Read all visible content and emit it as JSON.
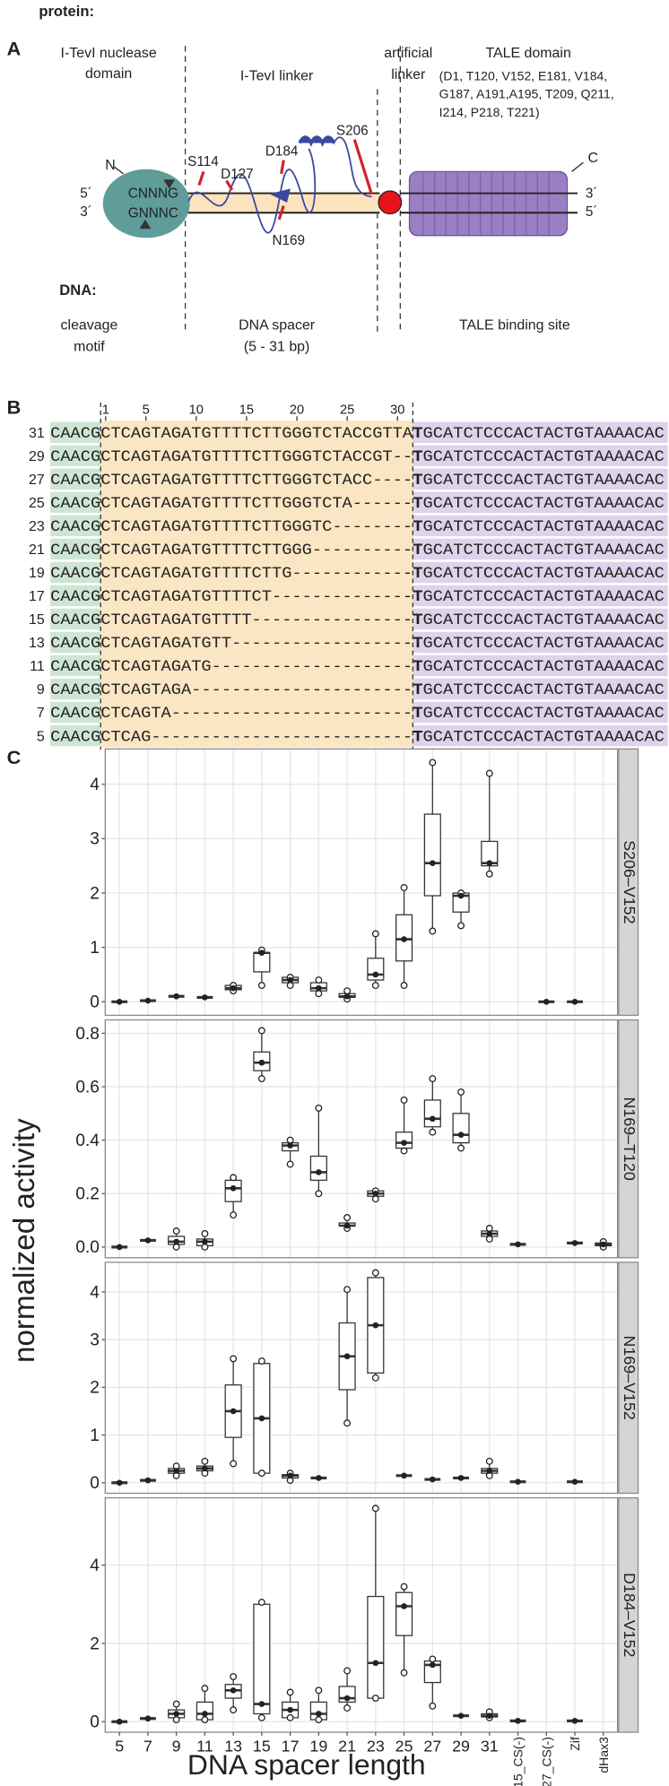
{
  "panel_a": {
    "label": "A",
    "protein": "protein:",
    "nuclease_domain": [
      "I-TevI nuclease",
      "domain"
    ],
    "linker": "I-TevI linker",
    "artificial_linker": [
      "artificial",
      "linker"
    ],
    "tale_domain": "TALE domain",
    "tale_residues": [
      "(D1, T120, V152, E181, V184,",
      "G187, A191,A195, T209, Q211,",
      "I214, P218, T221)"
    ],
    "n_term": "N",
    "c_term": "C",
    "left_top_end": "5´",
    "left_bottom_end": "3´",
    "right_top_end": "3´",
    "right_bottom_end": "5´",
    "top_motif": "CNNNG",
    "bottom_motif": "GNNNC",
    "sites": [
      "S114",
      "D127",
      "D184",
      "S206",
      "N169"
    ],
    "dna": "DNA:",
    "cleavage_motif": [
      "cleavage",
      "motif"
    ],
    "dna_spacer": [
      "DNA spacer",
      "(5 - 31 bp)"
    ],
    "tale_binding_site": "TALE binding site"
  },
  "panel_b": {
    "label": "B",
    "ruler": [
      1,
      5,
      10,
      15,
      20,
      25,
      30
    ],
    "rows": [
      {
        "length": "31",
        "motif": "CAACG",
        "spacer": "CTCAGTAGATGTTTTCTTGGGTCTACCGTTA",
        "junction": "T",
        "site": "GCATCTCCCACTACTGTAAAACAC"
      },
      {
        "length": "29",
        "motif": "CAACG",
        "spacer": "CTCAGTAGATGTTTTCTTGGGTCTACCGT--",
        "junction": "T",
        "site": "GCATCTCCCACTACTGTAAAACAC"
      },
      {
        "length": "27",
        "motif": "CAACG",
        "spacer": "CTCAGTAGATGTTTTCTTGGGTCTACC----",
        "junction": "T",
        "site": "GCATCTCCCACTACTGTAAAACAC"
      },
      {
        "length": "25",
        "motif": "CAACG",
        "spacer": "CTCAGTAGATGTTTTCTTGGGTCTA------",
        "junction": "T",
        "site": "GCATCTCCCACTACTGTAAAACAC"
      },
      {
        "length": "23",
        "motif": "CAACG",
        "spacer": "CTCAGTAGATGTTTTCTTGGGTC--------",
        "junction": "T",
        "site": "GCATCTCCCACTACTGTAAAACAC"
      },
      {
        "length": "21",
        "motif": "CAACG",
        "spacer": "CTCAGTAGATGTTTTCTTGGG----------",
        "junction": "T",
        "site": "GCATCTCCCACTACTGTAAAACAC"
      },
      {
        "length": "19",
        "motif": "CAACG",
        "spacer": "CTCAGTAGATGTTTTCTTG------------",
        "junction": "T",
        "site": "GCATCTCCCACTACTGTAAAACAC"
      },
      {
        "length": "17",
        "motif": "CAACG",
        "spacer": "CTCAGTAGATGTTTTCT--------------",
        "junction": "T",
        "site": "GCATCTCCCACTACTGTAAAACAC"
      },
      {
        "length": "15",
        "motif": "CAACG",
        "spacer": "CTCAGTAGATGTTTT----------------",
        "junction": "T",
        "site": "GCATCTCCCACTACTGTAAAACAC"
      },
      {
        "length": "13",
        "motif": "CAACG",
        "spacer": "CTCAGTAGATGTT------------------",
        "junction": "T",
        "site": "GCATCTCCCACTACTGTAAAACAC"
      },
      {
        "length": "11",
        "motif": "CAACG",
        "spacer": "CTCAGTAGATG--------------------",
        "junction": "T",
        "site": "GCATCTCCCACTACTGTAAAACAC"
      },
      {
        "length": "9",
        "motif": "CAACG",
        "spacer": "CTCAGTAGA----------------------",
        "junction": "T",
        "site": "GCATCTCCCACTACTGTAAAACAC"
      },
      {
        "length": "7",
        "motif": "CAACG",
        "spacer": "CTCAGTA------------------------",
        "junction": "T",
        "site": "GCATCTCCCACTACTGTAAAACAC"
      },
      {
        "length": "5",
        "motif": "CAACG",
        "spacer": "CTCAG--------------------------",
        "junction": "T",
        "site": "GCATCTCCCACTACTGTAAAACAC"
      }
    ]
  },
  "panel_c_label": "C",
  "chart_data": [
    {
      "type": "box",
      "title": "S206–V152",
      "ylabel": "normalized activity",
      "ylim": [
        -0.25,
        4.65
      ],
      "yticks": [
        0,
        1,
        2,
        3,
        4
      ],
      "grid": true,
      "values": [
        0,
        0.02,
        0.1,
        0.08,
        [
          0.2,
          0.22,
          0.25,
          0.3,
          0.3
        ],
        [
          0.3,
          0.55,
          0.9,
          0.9,
          0.95
        ],
        [
          0.3,
          0.35,
          0.4,
          0.45,
          0.45
        ],
        [
          0.15,
          0.2,
          0.25,
          0.35,
          0.4
        ],
        [
          0.05,
          0.08,
          0.1,
          0.15,
          0.2
        ],
        [
          0.3,
          0.4,
          0.5,
          0.8,
          1.25
        ],
        [
          0.3,
          0.75,
          1.15,
          1.6,
          2.1
        ],
        [
          1.3,
          1.95,
          2.55,
          3.45,
          4.4
        ],
        [
          1.4,
          1.65,
          1.95,
          2.0,
          2.0
        ],
        [
          2.35,
          2.5,
          2.55,
          2.95,
          4.2
        ],
        null,
        0,
        0,
        null
      ]
    },
    {
      "type": "box",
      "title": "N169–T120",
      "ylim": [
        -0.04,
        0.85
      ],
      "yticks": [
        {
          "value": 0,
          "label": "0.0"
        },
        0.2,
        0.4,
        0.6,
        0.8
      ],
      "grid": true,
      "values": [
        0,
        0.025,
        [
          0,
          0.01,
          0.02,
          0.04,
          0.06
        ],
        [
          0,
          0.005,
          0.02,
          0.03,
          0.05
        ],
        [
          0.12,
          0.17,
          0.22,
          0.25,
          0.26
        ],
        [
          0.63,
          0.66,
          0.69,
          0.73,
          0.81
        ],
        [
          0.31,
          0.36,
          0.38,
          0.39,
          0.4
        ],
        [
          0.2,
          0.25,
          0.28,
          0.34,
          0.52
        ],
        [
          0.07,
          0.08,
          0.08,
          0.09,
          0.11
        ],
        [
          0.18,
          0.19,
          0.2,
          0.21,
          0.21
        ],
        [
          0.36,
          0.37,
          0.39,
          0.43,
          0.55
        ],
        [
          0.43,
          0.45,
          0.48,
          0.55,
          0.63
        ],
        [
          0.37,
          0.39,
          0.42,
          0.5,
          0.58
        ],
        [
          0.03,
          0.04,
          0.05,
          0.06,
          0.07
        ],
        0.01,
        null,
        0.015,
        [
          0,
          0.005,
          0.01,
          0.015,
          0.02
        ]
      ]
    },
    {
      "type": "box",
      "title": "N169–V152",
      "ylim": [
        -0.22,
        4.62
      ],
      "yticks": [
        0,
        1,
        2,
        3,
        4
      ],
      "grid": true,
      "values": [
        0,
        0.05,
        [
          0.15,
          0.2,
          0.25,
          0.3,
          0.35
        ],
        [
          0.2,
          0.25,
          0.3,
          0.35,
          0.45
        ],
        [
          0.4,
          0.95,
          1.5,
          2.05,
          2.6
        ],
        [
          0.2,
          0.2,
          1.35,
          2.5,
          2.55
        ],
        [
          0.05,
          0.1,
          0.15,
          0.17,
          0.2
        ],
        0.1,
        [
          1.25,
          1.95,
          2.65,
          3.35,
          4.05
        ],
        [
          2.2,
          2.3,
          3.3,
          4.3,
          4.4
        ],
        0.15,
        0.07,
        0.1,
        [
          0.15,
          0.2,
          0.25,
          0.3,
          0.45
        ],
        0.02,
        null,
        0.02,
        null
      ]
    },
    {
      "type": "box",
      "title": "D184–V152",
      "xlabel": "DNA spacer length",
      "ylim": [
        -0.27,
        5.72
      ],
      "yticks": [
        0,
        2,
        4
      ],
      "grid": true,
      "categories": [
        "5",
        "7",
        "9",
        "11",
        "13",
        "15",
        "17",
        "19",
        "21",
        "23",
        "25",
        "27",
        "29",
        "31",
        "15_CS(-)",
        "27_CS(-)",
        "Zif",
        "dHax3"
      ],
      "values": [
        0,
        0.08,
        [
          0.05,
          0.1,
          0.2,
          0.3,
          0.45
        ],
        [
          0.05,
          0.05,
          0.2,
          0.5,
          0.85
        ],
        [
          0.3,
          0.6,
          0.8,
          0.95,
          1.15
        ],
        [
          0.1,
          0.2,
          0.45,
          3.0,
          3.05
        ],
        [
          0.1,
          0.1,
          0.3,
          0.5,
          0.75
        ],
        [
          0.05,
          0.05,
          0.2,
          0.5,
          0.8
        ],
        [
          0.35,
          0.5,
          0.6,
          0.9,
          1.3
        ],
        [
          0.6,
          0.6,
          1.5,
          3.2,
          5.45
        ],
        [
          1.25,
          2.2,
          2.95,
          3.3,
          3.45
        ],
        [
          0.4,
          1.0,
          1.45,
          1.55,
          1.6
        ],
        0.15,
        [
          0.1,
          0.12,
          0.15,
          0.2,
          0.25
        ],
        0.02,
        null,
        0.02,
        null
      ]
    }
  ]
}
